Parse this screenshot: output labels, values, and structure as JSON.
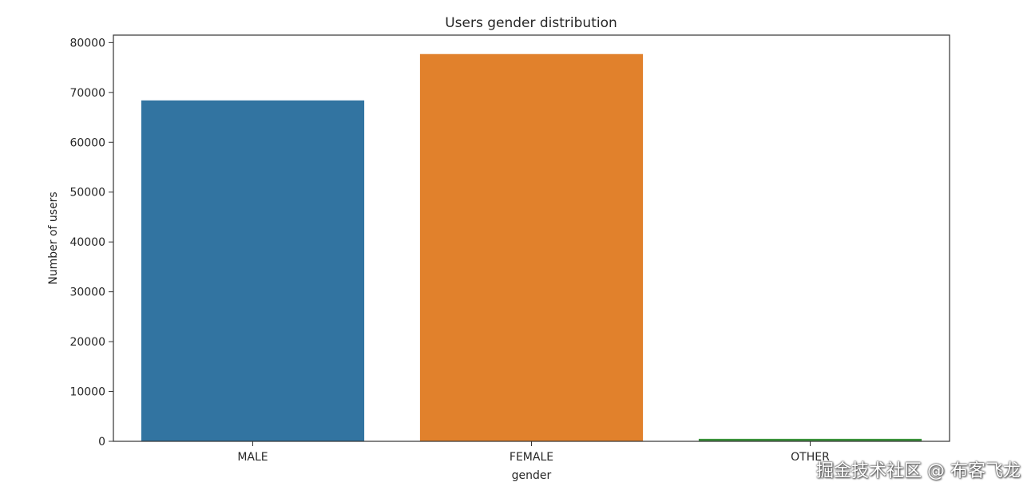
{
  "chart_data": {
    "type": "bar",
    "title": "Users gender distribution",
    "xlabel": "gender",
    "ylabel": "Number of users",
    "categories": [
      "MALE",
      "FEMALE",
      "OTHER"
    ],
    "values": [
      68400,
      77700,
      500
    ],
    "colors": [
      "#3274a1",
      "#e1812c",
      "#3a923a"
    ],
    "ylim": [
      0,
      81500
    ],
    "yticks": [
      0,
      10000,
      20000,
      30000,
      40000,
      50000,
      60000,
      70000,
      80000
    ],
    "grid": false,
    "legend": "none"
  },
  "watermark": "掘金技术社区 @ 布客飞龙"
}
